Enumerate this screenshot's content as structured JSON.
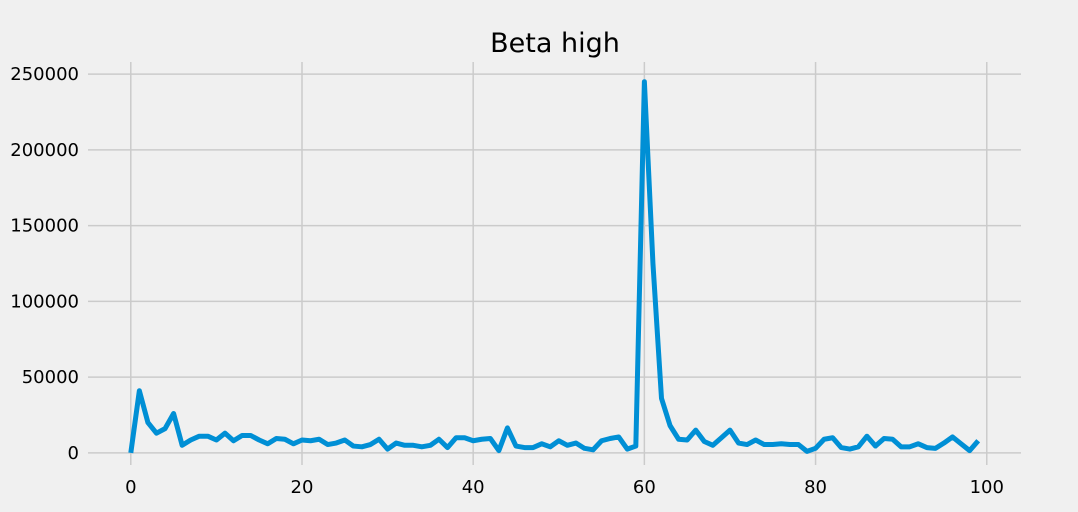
{
  "chart_data": {
    "type": "line",
    "title": "Beta high",
    "xlabel": "",
    "ylabel": "",
    "xlim": [
      -5,
      104
    ],
    "ylim": [
      -8000,
      258000
    ],
    "xticks": [
      0,
      20,
      40,
      60,
      80,
      100
    ],
    "yticks": [
      0,
      50000,
      100000,
      150000,
      200000,
      250000
    ],
    "grid": true,
    "series": [
      {
        "color": "#008fd5",
        "x": [
          0,
          1,
          2,
          3,
          4,
          5,
          6,
          7,
          8,
          9,
          10,
          11,
          12,
          13,
          14,
          15,
          16,
          17,
          18,
          19,
          20,
          21,
          22,
          23,
          24,
          25,
          26,
          27,
          28,
          29,
          30,
          31,
          32,
          33,
          34,
          35,
          36,
          37,
          38,
          39,
          40,
          41,
          42,
          43,
          44,
          45,
          46,
          47,
          48,
          49,
          50,
          51,
          52,
          53,
          54,
          55,
          56,
          57,
          58,
          59,
          60,
          61,
          62,
          63,
          64,
          65,
          66,
          67,
          68,
          69,
          70,
          71,
          72,
          73,
          74,
          75,
          76,
          77,
          78,
          79,
          80,
          81,
          82,
          83,
          84,
          85,
          86,
          87,
          88,
          89,
          90,
          91,
          92,
          93,
          94,
          95,
          96,
          97,
          98,
          99
        ],
        "values": [
          0,
          41000,
          20000,
          13000,
          16000,
          26000,
          5000,
          8500,
          11000,
          11000,
          8500,
          13000,
          8000,
          11500,
          11500,
          8500,
          6000,
          9500,
          9000,
          6000,
          8500,
          8000,
          9000,
          5500,
          6500,
          8500,
          4500,
          4000,
          5500,
          9000,
          2500,
          6500,
          5000,
          5000,
          4000,
          5000,
          9000,
          3500,
          10000,
          10000,
          8000,
          9000,
          9500,
          1500,
          16500,
          4500,
          3500,
          3500,
          6000,
          4000,
          8000,
          5000,
          6500,
          3000,
          2000,
          8000,
          9500,
          10500,
          2500,
          4500,
          245000,
          125000,
          36000,
          18000,
          9000,
          8500,
          15000,
          7500,
          5000,
          10000,
          15000,
          6500,
          5500,
          8500,
          5500,
          5500,
          6000,
          5500,
          5500,
          1000,
          3000,
          9000,
          10000,
          3500,
          2500,
          4000,
          11000,
          4500,
          9500,
          9000,
          4000,
          4000,
          6000,
          3500,
          3000,
          6500,
          10500,
          6000,
          1500,
          8000
        ]
      }
    ]
  }
}
